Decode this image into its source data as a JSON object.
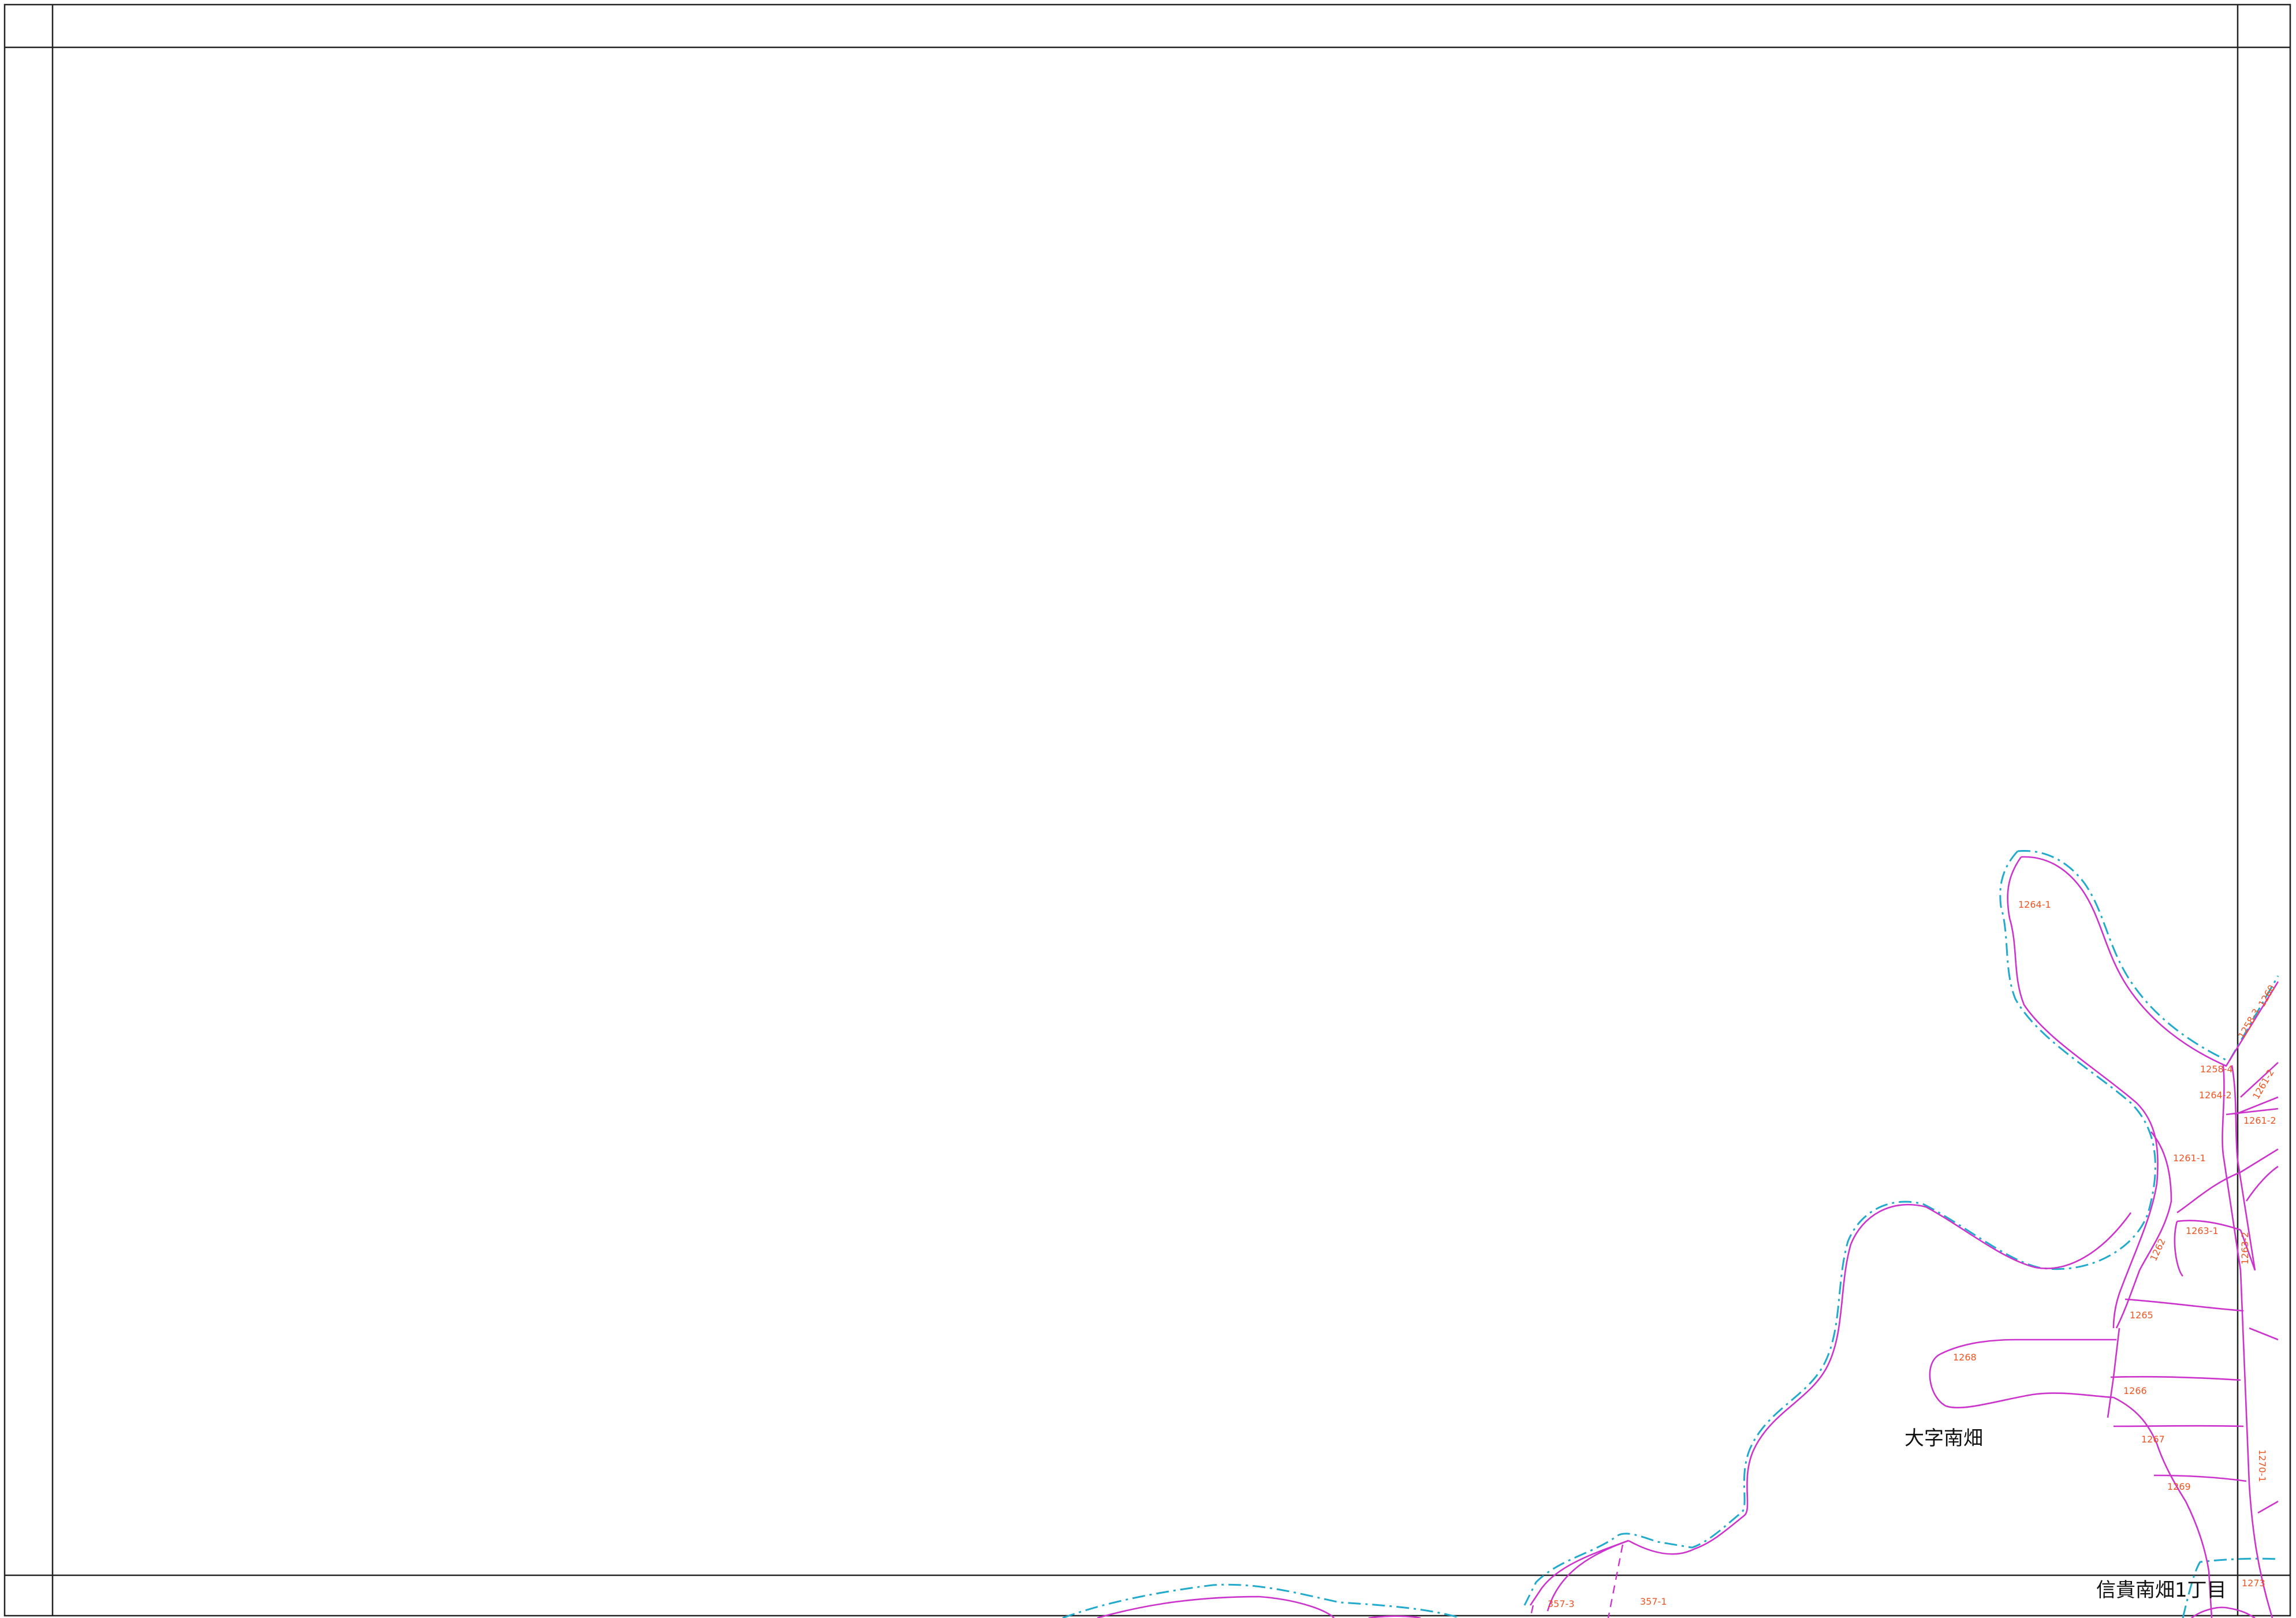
{
  "colors": {
    "parcel_line": "#cc33cc",
    "district_boundary": "#22aacc",
    "lot_number": "#ee5522",
    "frame": "#222222"
  },
  "districts": {
    "minamihata": "大字南畑",
    "shiki_minamihata_1": "信貴南畑1丁目"
  },
  "lots": {
    "l1264_1": "1264-1",
    "l1258_3": "1258-3",
    "l1258_4": "1258-4",
    "l1264_2": "1264-2",
    "l1261_2": "1261-2",
    "l1261_2b": "1261-2",
    "l1260": "1260",
    "l1261_1": "1261-1",
    "l1263_1": "1263-1",
    "l1263_2": "1263-2",
    "l1262": "1262",
    "l1265": "1265",
    "l1268": "1268",
    "l1266": "1266",
    "l1267": "1267",
    "l1270_1": "1270-1",
    "l1269": "1269",
    "l1273": "1273",
    "l357_3": "357-3",
    "l357_1": "357-1"
  }
}
